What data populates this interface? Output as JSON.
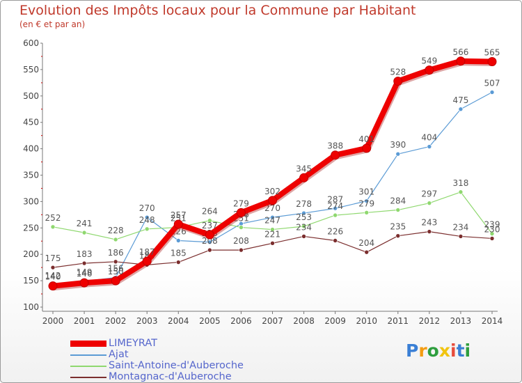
{
  "title": "Evolution des Impôts locaux pour la Commune par Habitant",
  "subtitle": "(en € et par an)",
  "logo": {
    "letters": [
      "P",
      "r",
      "o",
      "x",
      "i",
      "t",
      "i"
    ],
    "colors": [
      "#3a7fd5",
      "#f39c12",
      "#2e9e3e",
      "#f1c40f",
      "#e74c3c",
      "#3a7fd5",
      "#2e9e3e"
    ]
  },
  "chart_data": {
    "type": "line",
    "x": [
      2000,
      2001,
      2002,
      2003,
      2004,
      2005,
      2006,
      2007,
      2008,
      2009,
      2010,
      2011,
      2012,
      2013,
      2014
    ],
    "ylim": [
      100,
      600
    ],
    "yticks": [
      100,
      150,
      200,
      250,
      300,
      350,
      400,
      450,
      500,
      550,
      600
    ],
    "grid": false,
    "legend_position": "bottom-left",
    "series": [
      {
        "name": "Ajat",
        "color": "#5b9bd5",
        "values": [
          142,
          149,
          156,
          270,
          226,
          223,
          258,
          270,
          278,
          287,
          301,
          390,
          404,
          475,
          507
        ]
      },
      {
        "name": "Saint-Antoine-d'Auberoche",
        "color": "#8fd86f",
        "values": [
          252,
          241,
          228,
          248,
          251,
          264,
          251,
          247,
          253,
          274,
          279,
          284,
          297,
          318,
          239
        ]
      },
      {
        "name": "Montagnac-d'Auberoche",
        "color": "#7b2e2e",
        "values": [
          175,
          183,
          186,
          180,
          185,
          208,
          208,
          221,
          234,
          226,
          204,
          235,
          243,
          234,
          230
        ]
      },
      {
        "name": "LIMEYRAT",
        "color": "#ee0000",
        "values": [
          140,
          146,
          150,
          187,
          257,
          237,
          279,
          302,
          345,
          388,
          401,
          528,
          549,
          566,
          565
        ]
      }
    ]
  }
}
